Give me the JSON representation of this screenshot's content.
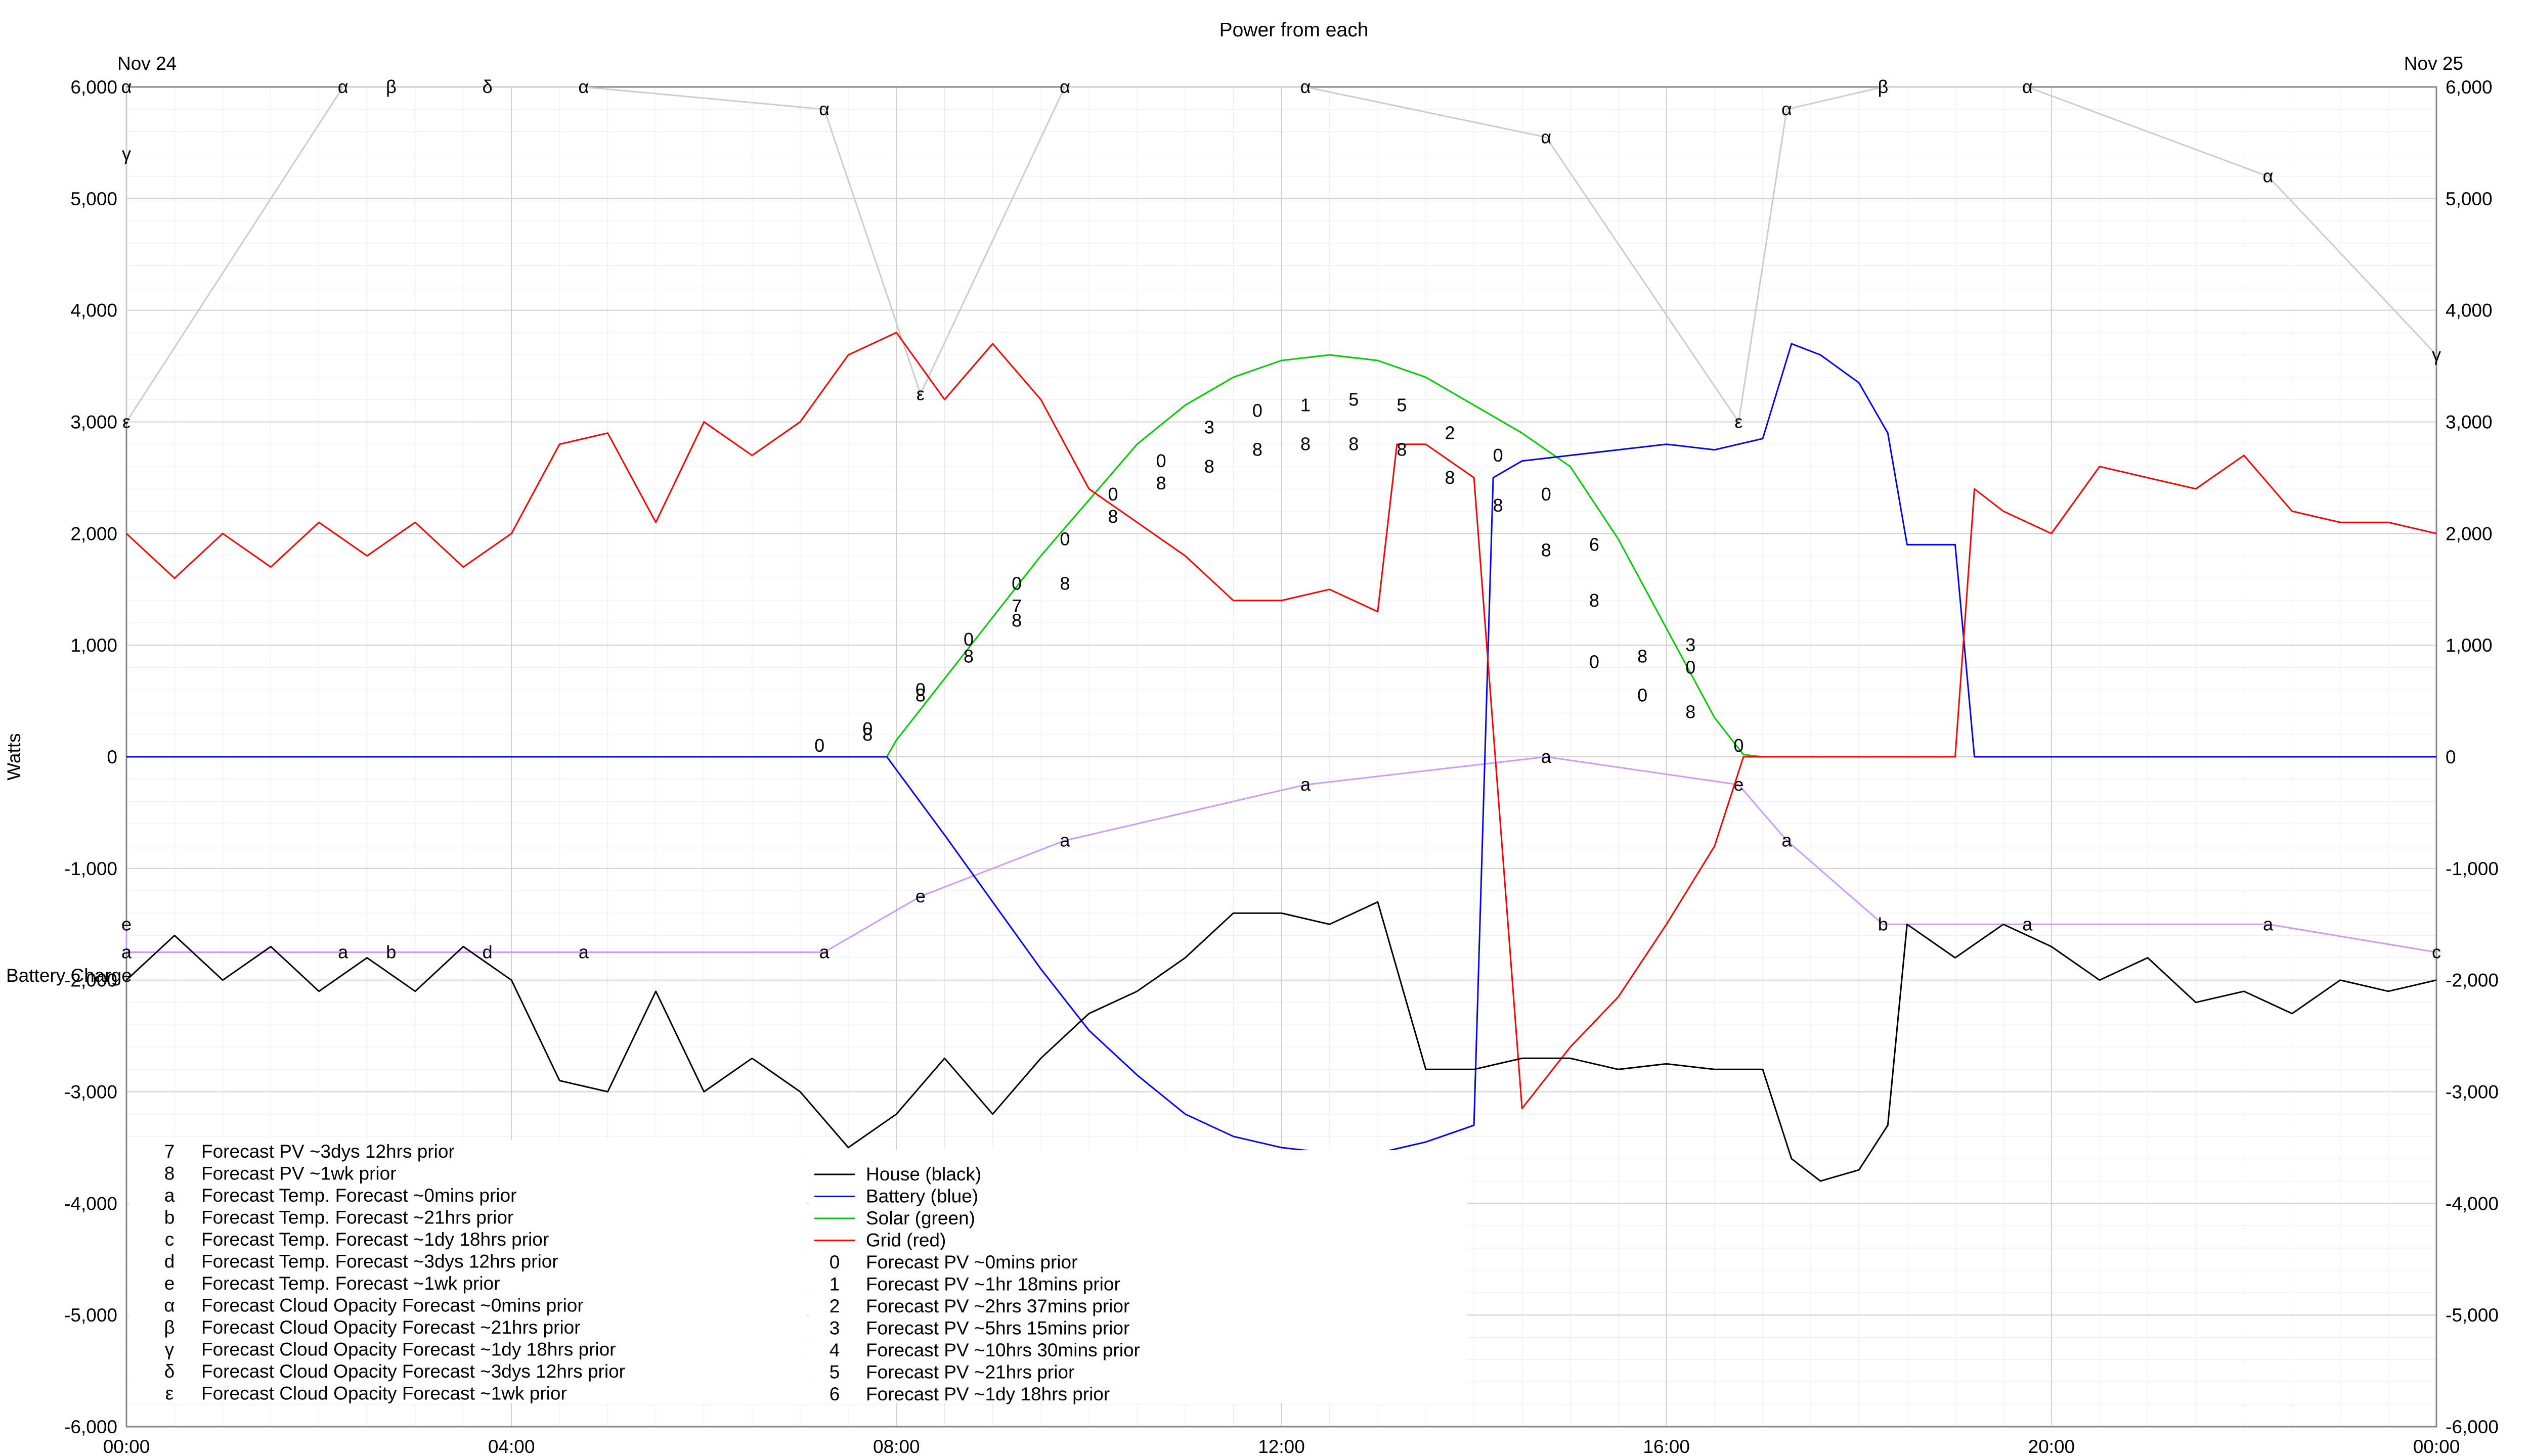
{
  "chart_data": {
    "type": "line",
    "title": "Power from each",
    "ylabel": "Watts",
    "y2label": "Battery Charge",
    "date_left": "Nov 24",
    "date_right": "Nov 25",
    "ylim": [
      -6000,
      6000
    ],
    "y_ticks": [
      -6000,
      -5000,
      -4000,
      -3000,
      -2000,
      -1000,
      0,
      1000,
      2000,
      3000,
      4000,
      5000,
      6000
    ],
    "y_tick_labels": [
      "-6,000",
      "-5,000",
      "-4,000",
      "-3,000",
      "-2,000",
      "-1,000",
      "0",
      "1,000",
      "2,000",
      "3,000",
      "4,000",
      "5,000",
      "6,000"
    ],
    "xlim_hours": [
      0,
      24
    ],
    "x_ticks": [
      0,
      4,
      8,
      12,
      16,
      20,
      24
    ],
    "x_tick_labels": [
      "00:00",
      "04:00",
      "08:00",
      "12:00",
      "16:00",
      "20:00",
      "00:00"
    ],
    "grid": true,
    "colors": {
      "house": "#000000",
      "battery": "#0000ff",
      "solar": "#00cc00",
      "grid": "#ff0000",
      "forecast_pv": "#888888",
      "forecast_temp": "#cc99ff",
      "cloud": "#cccccc",
      "axis": "#888888",
      "gridline": "#d0d0d0"
    },
    "legend_left": [
      {
        "symbol": "7",
        "label": "Forecast PV ~3dys 12hrs prior"
      },
      {
        "symbol": "8",
        "label": "Forecast PV ~1wk prior"
      },
      {
        "symbol": "a",
        "label": "Forecast Temp. Forecast ~0mins prior"
      },
      {
        "symbol": "b",
        "label": "Forecast Temp. Forecast ~21hrs prior"
      },
      {
        "symbol": "c",
        "label": "Forecast Temp. Forecast ~1dy 18hrs prior"
      },
      {
        "symbol": "d",
        "label": "Forecast Temp. Forecast ~3dys 12hrs prior"
      },
      {
        "symbol": "e",
        "label": "Forecast Temp. Forecast ~1wk prior"
      },
      {
        "symbol": "α",
        "label": "Forecast Cloud Opacity Forecast ~0mins prior"
      },
      {
        "symbol": "β",
        "label": "Forecast Cloud Opacity Forecast ~21hrs prior"
      },
      {
        "symbol": "γ",
        "label": "Forecast Cloud Opacity Forecast ~1dy 18hrs prior"
      },
      {
        "symbol": "δ",
        "label": "Forecast Cloud Opacity Forecast ~3dys 12hrs prior"
      },
      {
        "symbol": "ε",
        "label": "Forecast Cloud Opacity Forecast ~1wk prior"
      }
    ],
    "legend_right": [
      {
        "symbol": "",
        "label": "House (black)",
        "color": "#000000"
      },
      {
        "symbol": "",
        "label": "Battery (blue)",
        "color": "#0000ff"
      },
      {
        "symbol": "",
        "label": "Solar (green)",
        "color": "#00cc00"
      },
      {
        "symbol": "",
        "label": "Grid (red)",
        "color": "#ff0000"
      },
      {
        "symbol": "0",
        "label": "Forecast PV ~0mins prior"
      },
      {
        "symbol": "1",
        "label": "Forecast PV ~1hr 18mins prior"
      },
      {
        "symbol": "2",
        "label": "Forecast PV ~2hrs 37mins prior"
      },
      {
        "symbol": "3",
        "label": "Forecast PV ~5hrs 15mins prior"
      },
      {
        "symbol": "4",
        "label": "Forecast PV ~10hrs 30mins prior"
      },
      {
        "symbol": "5",
        "label": "Forecast PV ~21hrs prior"
      },
      {
        "symbol": "6",
        "label": "Forecast PV ~1dy 18hrs prior"
      }
    ],
    "series": [
      {
        "name": "Solar (green)",
        "color": "#00cc00",
        "x": [
          7.9,
          8.0,
          8.5,
          9.0,
          9.5,
          10.0,
          10.5,
          11.0,
          11.5,
          12.0,
          12.5,
          13.0,
          13.5,
          14.0,
          14.5,
          15.0,
          15.5,
          16.0,
          16.5,
          16.8,
          17.0
        ],
        "y": [
          0,
          150,
          700,
          1250,
          1800,
          2300,
          2800,
          3150,
          3400,
          3550,
          3600,
          3550,
          3400,
          3150,
          2900,
          2600,
          1950,
          1150,
          350,
          20,
          0
        ]
      },
      {
        "name": "Battery (blue)",
        "color": "#0000ff",
        "x": [
          0,
          7.9,
          8.5,
          9.0,
          9.5,
          10.0,
          10.5,
          11.0,
          11.5,
          12.0,
          12.5,
          13.0,
          13.5,
          14.0,
          14.2,
          14.5,
          15.0,
          15.5,
          16.0,
          16.5,
          17.0,
          17.3,
          17.6,
          18.0,
          18.3,
          18.5,
          18.8,
          19.0,
          19.2,
          20,
          21,
          22,
          23,
          24
        ],
        "y": [
          0,
          0,
          -700,
          -1300,
          -1900,
          -2450,
          -2850,
          -3200,
          -3400,
          -3500,
          -3550,
          -3550,
          -3450,
          -3300,
          2500,
          2650,
          2700,
          2750,
          2800,
          2750,
          2850,
          3700,
          3600,
          3350,
          2900,
          1900,
          1900,
          1900,
          0,
          0,
          0,
          0,
          0,
          0
        ]
      },
      {
        "name": "Grid (red)",
        "color": "#ff0000",
        "x": [
          0,
          0.5,
          1,
          1.5,
          2,
          2.5,
          3,
          3.5,
          4,
          4.5,
          5,
          5.5,
          6,
          6.5,
          7,
          7.5,
          8,
          8.5,
          9,
          9.5,
          10,
          10.5,
          11,
          11.5,
          12,
          12.5,
          13,
          13.2,
          13.5,
          14.0,
          14.5,
          15,
          15.5,
          16,
          16.5,
          16.8,
          17,
          18,
          19,
          19.2,
          19.5,
          20,
          20.5,
          21,
          21.5,
          22,
          22.5,
          23,
          23.5,
          24
        ],
        "y": [
          2000,
          1600,
          2000,
          1700,
          2100,
          1800,
          2100,
          1700,
          2000,
          2800,
          2900,
          2100,
          3000,
          2700,
          3000,
          3600,
          3800,
          3200,
          3700,
          3200,
          2400,
          2100,
          1800,
          1400,
          1400,
          1500,
          1300,
          2800,
          2800,
          2500,
          -3150,
          -2600,
          -2150,
          -1500,
          -800,
          0,
          0,
          0,
          0,
          2400,
          2200,
          2000,
          2600,
          2500,
          2400,
          2700,
          2200,
          2100,
          2100,
          2000
        ]
      },
      {
        "name": "House (black)",
        "color": "#000000",
        "x": [
          0,
          0.5,
          1,
          1.5,
          2,
          2.5,
          3,
          3.5,
          4,
          4.5,
          5,
          5.5,
          6,
          6.5,
          7,
          7.5,
          8,
          8.5,
          9,
          9.5,
          10,
          10.5,
          11,
          11.5,
          12,
          12.5,
          13,
          13.5,
          14,
          14.5,
          15,
          15.5,
          16,
          16.5,
          17,
          17.3,
          17.6,
          18,
          18.3,
          18.5,
          19,
          19.5,
          20,
          20.5,
          21,
          21.5,
          22,
          22.5,
          23,
          23.5,
          24
        ],
        "y": [
          -2000,
          -1600,
          -2000,
          -1700,
          -2100,
          -1800,
          -2100,
          -1700,
          -2000,
          -2900,
          -3000,
          -2100,
          -3000,
          -2700,
          -3000,
          -3500,
          -3200,
          -2700,
          -3200,
          -2700,
          -2300,
          -2100,
          -1800,
          -1400,
          -1400,
          -1500,
          -1300,
          -2800,
          -2800,
          -2700,
          -2700,
          -2800,
          -2750,
          -2800,
          -2800,
          -3600,
          -3800,
          -3700,
          -3300,
          -1500,
          -1800,
          -1500,
          -1700,
          -2000,
          -1800,
          -2200,
          -2100,
          -2300,
          -2000,
          -2100,
          -2000
        ]
      }
    ],
    "forecast_markers": [
      {
        "label": "0",
        "x": 7.2,
        "y": 100
      },
      {
        "label": "0",
        "x": 7.7,
        "y": 250
      },
      {
        "label": "8",
        "x": 7.7,
        "y": 200
      },
      {
        "label": "0",
        "x": 8.25,
        "y": 600
      },
      {
        "label": "8",
        "x": 8.25,
        "y": 550
      },
      {
        "label": "0",
        "x": 8.75,
        "y": 1050
      },
      {
        "label": "8",
        "x": 8.75,
        "y": 900
      },
      {
        "label": "0",
        "x": 9.25,
        "y": 1550
      },
      {
        "label": "7",
        "x": 9.25,
        "y": 1350
      },
      {
        "label": "8",
        "x": 9.25,
        "y": 1220
      },
      {
        "label": "0",
        "x": 9.75,
        "y": 1950
      },
      {
        "label": "8",
        "x": 9.75,
        "y": 1550
      },
      {
        "label": "0",
        "x": 10.25,
        "y": 2350
      },
      {
        "label": "8",
        "x": 10.25,
        "y": 2150
      },
      {
        "label": "0",
        "x": 10.75,
        "y": 2650
      },
      {
        "label": "8",
        "x": 10.75,
        "y": 2450
      },
      {
        "label": "3",
        "x": 11.25,
        "y": 2950
      },
      {
        "label": "8",
        "x": 11.25,
        "y": 2600
      },
      {
        "label": "0",
        "x": 11.75,
        "y": 3100
      },
      {
        "label": "8",
        "x": 11.75,
        "y": 2750
      },
      {
        "label": "1",
        "x": 12.25,
        "y": 3150
      },
      {
        "label": "8",
        "x": 12.25,
        "y": 2800
      },
      {
        "label": "5",
        "x": 12.75,
        "y": 3200
      },
      {
        "label": "8",
        "x": 12.75,
        "y": 2800
      },
      {
        "label": "5",
        "x": 13.25,
        "y": 3150
      },
      {
        "label": "8",
        "x": 13.25,
        "y": 2750
      },
      {
        "label": "2",
        "x": 13.75,
        "y": 2900
      },
      {
        "label": "8",
        "x": 13.75,
        "y": 2500
      },
      {
        "label": "0",
        "x": 14.25,
        "y": 2700
      },
      {
        "label": "8",
        "x": 14.25,
        "y": 2250
      },
      {
        "label": "0",
        "x": 14.75,
        "y": 2350
      },
      {
        "label": "8",
        "x": 14.75,
        "y": 1850
      },
      {
        "label": "6",
        "x": 15.25,
        "y": 1900
      },
      {
        "label": "8",
        "x": 15.25,
        "y": 1400
      },
      {
        "label": "0",
        "x": 15.25,
        "y": 850
      },
      {
        "label": "8",
        "x": 15.75,
        "y": 900
      },
      {
        "label": "0",
        "x": 15.75,
        "y": 550
      },
      {
        "label": "3",
        "x": 16.25,
        "y": 1000
      },
      {
        "label": "0",
        "x": 16.25,
        "y": 800
      },
      {
        "label": "8",
        "x": 16.25,
        "y": 400
      },
      {
        "label": "0",
        "x": 16.75,
        "y": 100
      }
    ],
    "cloud_markers": [
      {
        "label": "α",
        "x": 0.0,
        "y": 6000
      },
      {
        "label": "γ",
        "x": 0.0,
        "y": 5400
      },
      {
        "label": "ε",
        "x": 0.0,
        "y": 3000
      },
      {
        "label": "α",
        "x": 2.25,
        "y": 6000
      },
      {
        "label": "β",
        "x": 2.75,
        "y": 6000
      },
      {
        "label": "δ",
        "x": 3.75,
        "y": 6000
      },
      {
        "label": "α",
        "x": 4.75,
        "y": 6000
      },
      {
        "label": "α",
        "x": 7.25,
        "y": 5800
      },
      {
        "label": "ε",
        "x": 8.25,
        "y": 3250
      },
      {
        "label": "α",
        "x": 9.75,
        "y": 6000
      },
      {
        "label": "α",
        "x": 12.25,
        "y": 6000
      },
      {
        "label": "α",
        "x": 14.75,
        "y": 5550
      },
      {
        "label": "ε",
        "x": 16.75,
        "y": 3000
      },
      {
        "label": "α",
        "x": 17.25,
        "y": 5800
      },
      {
        "label": "β",
        "x": 18.25,
        "y": 6000
      },
      {
        "label": "α",
        "x": 19.75,
        "y": 6000
      },
      {
        "label": "α",
        "x": 22.25,
        "y": 5200
      },
      {
        "label": "γ",
        "x": 24.0,
        "y": 3600
      }
    ],
    "temp_markers": [
      {
        "label": "e",
        "x": 0.0,
        "y": -1500
      },
      {
        "label": "a",
        "x": 0.0,
        "y": -1750
      },
      {
        "label": "a",
        "x": 2.25,
        "y": -1750
      },
      {
        "label": "b",
        "x": 2.75,
        "y": -1750
      },
      {
        "label": "d",
        "x": 3.75,
        "y": -1750
      },
      {
        "label": "a",
        "x": 4.75,
        "y": -1750
      },
      {
        "label": "a",
        "x": 7.25,
        "y": -1750
      },
      {
        "label": "e",
        "x": 8.25,
        "y": -1250
      },
      {
        "label": "a",
        "x": 9.75,
        "y": -750
      },
      {
        "label": "a",
        "x": 12.25,
        "y": -250
      },
      {
        "label": "a",
        "x": 14.75,
        "y": 0
      },
      {
        "label": "e",
        "x": 16.75,
        "y": -250
      },
      {
        "label": "a",
        "x": 17.25,
        "y": -750
      },
      {
        "label": "b",
        "x": 18.25,
        "y": -1500
      },
      {
        "label": "a",
        "x": 19.75,
        "y": -1500
      },
      {
        "label": "a",
        "x": 22.25,
        "y": -1500
      },
      {
        "label": "c",
        "x": 24.0,
        "y": -1750
      }
    ]
  }
}
